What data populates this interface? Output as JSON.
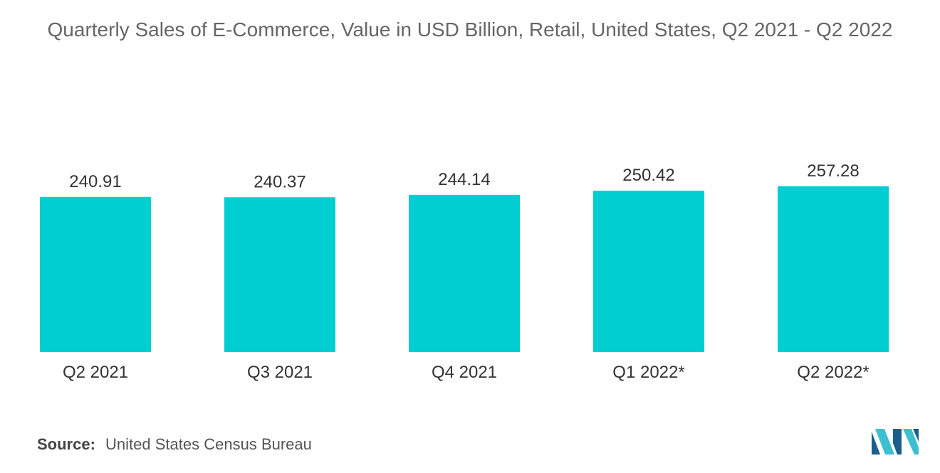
{
  "chart_data": {
    "type": "bar",
    "title": "Quarterly Sales of E-Commerce, Value in USD Billion, Retail, United States, Q2 2021 - Q2 2022",
    "categories": [
      "Q2 2021",
      "Q3 2021",
      "Q4 2021",
      "Q1 2022*",
      "Q2 2022*"
    ],
    "values": [
      240.91,
      240.37,
      244.14,
      250.42,
      257.28
    ],
    "value_labels": [
      "240.91",
      "240.37",
      "244.14",
      "250.42",
      "257.28"
    ],
    "xlabel": "",
    "ylabel": "",
    "ylim": [
      0,
      257.28
    ],
    "grid": false,
    "legend": "none",
    "bar_color": "#00CED1"
  },
  "source": {
    "label": "Source:",
    "text": "United States Census Bureau"
  },
  "logo": {
    "icon": "mordor-intelligence-logo-icon",
    "colors": [
      "#1B5F8C",
      "#3DBFD2"
    ]
  }
}
